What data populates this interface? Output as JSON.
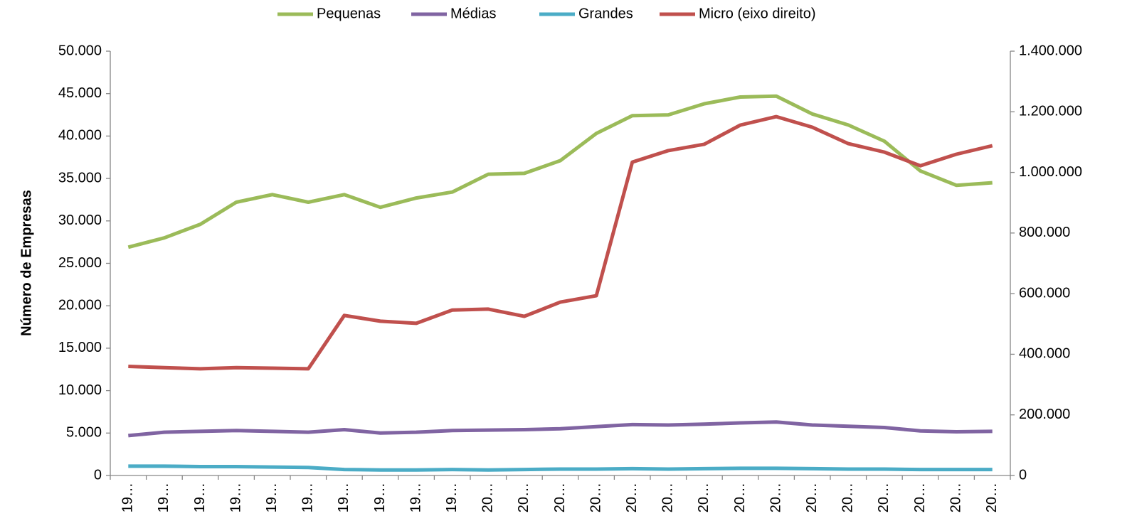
{
  "chart_data": {
    "type": "line",
    "y_label": "Número de Empresas",
    "legend": "top",
    "categories": [
      "19…",
      "19…",
      "19…",
      "19…",
      "19…",
      "19…",
      "19…",
      "19…",
      "19…",
      "19…",
      "20…",
      "20…",
      "20…",
      "20…",
      "20…",
      "20…",
      "20…",
      "20…",
      "20…",
      "20…",
      "20…",
      "20…",
      "20…",
      "20…",
      "20…"
    ],
    "series": [
      {
        "name": "Pequenas",
        "color": "#9bbb59",
        "values": [
          26900,
          28000,
          29600,
          32200,
          33100,
          32200,
          33100,
          31600,
          32700,
          33400,
          35500,
          35600,
          37100,
          40300,
          42400,
          42500,
          43800,
          44600,
          44700,
          42600,
          41300,
          39400,
          35900,
          34200,
          34500
        ]
      },
      {
        "name": "Médias",
        "color": "#8064a2",
        "values": [
          4700,
          5100,
          5200,
          5300,
          5200,
          5100,
          5400,
          5000,
          5100,
          5300,
          5350,
          5400,
          5500,
          5750,
          6000,
          5950,
          6050,
          6200,
          6300,
          5950,
          5800,
          5650,
          5250,
          5150,
          5200
        ]
      },
      {
        "name": "Grandes",
        "color": "#4bacc6",
        "values": [
          1100,
          1100,
          1050,
          1050,
          1000,
          950,
          700,
          650,
          650,
          700,
          650,
          700,
          750,
          750,
          800,
          750,
          800,
          850,
          850,
          800,
          750,
          750,
          700,
          700,
          700
        ]
      },
      {
        "name": "Micro (eixo direito)",
        "color": "#c0504d",
        "axis": "y2",
        "values": [
          360000,
          356000,
          352000,
          356000,
          354000,
          352000,
          528000,
          509000,
          502000,
          546000,
          549000,
          525000,
          572000,
          593000,
          1034000,
          1072000,
          1093000,
          1156000,
          1184000,
          1149000,
          1095000,
          1067000,
          1022000,
          1060000,
          1088000
        ]
      }
    ],
    "ylim": [
      0,
      50000
    ],
    "yticks": [
      0,
      {
        "value": 5000,
        "label": "5.000"
      },
      {
        "value": 10000,
        "label": "10.000"
      },
      {
        "value": 15000,
        "label": "15.000"
      },
      {
        "value": 20000,
        "label": "20.000"
      },
      {
        "value": 25000,
        "label": "25.000"
      },
      {
        "value": 30000,
        "label": "30.000"
      },
      {
        "value": 35000,
        "label": "35.000"
      },
      {
        "value": 40000,
        "label": "40.000"
      },
      {
        "value": 45000,
        "label": "45.000"
      },
      {
        "value": 50000,
        "label": "50.000"
      }
    ],
    "y2lim": [
      0,
      1400000
    ],
    "y2ticks": [
      0,
      {
        "value": 200000,
        "label": "200.000"
      },
      {
        "value": 400000,
        "label": "400.000"
      },
      {
        "value": 600000,
        "label": "600.000"
      },
      {
        "value": 800000,
        "label": "800.000"
      },
      {
        "value": 1000000,
        "label": "1.000.000"
      },
      {
        "value": 1200000,
        "label": "1.200.000"
      },
      {
        "value": 1400000,
        "label": "1.400.000"
      }
    ]
  }
}
